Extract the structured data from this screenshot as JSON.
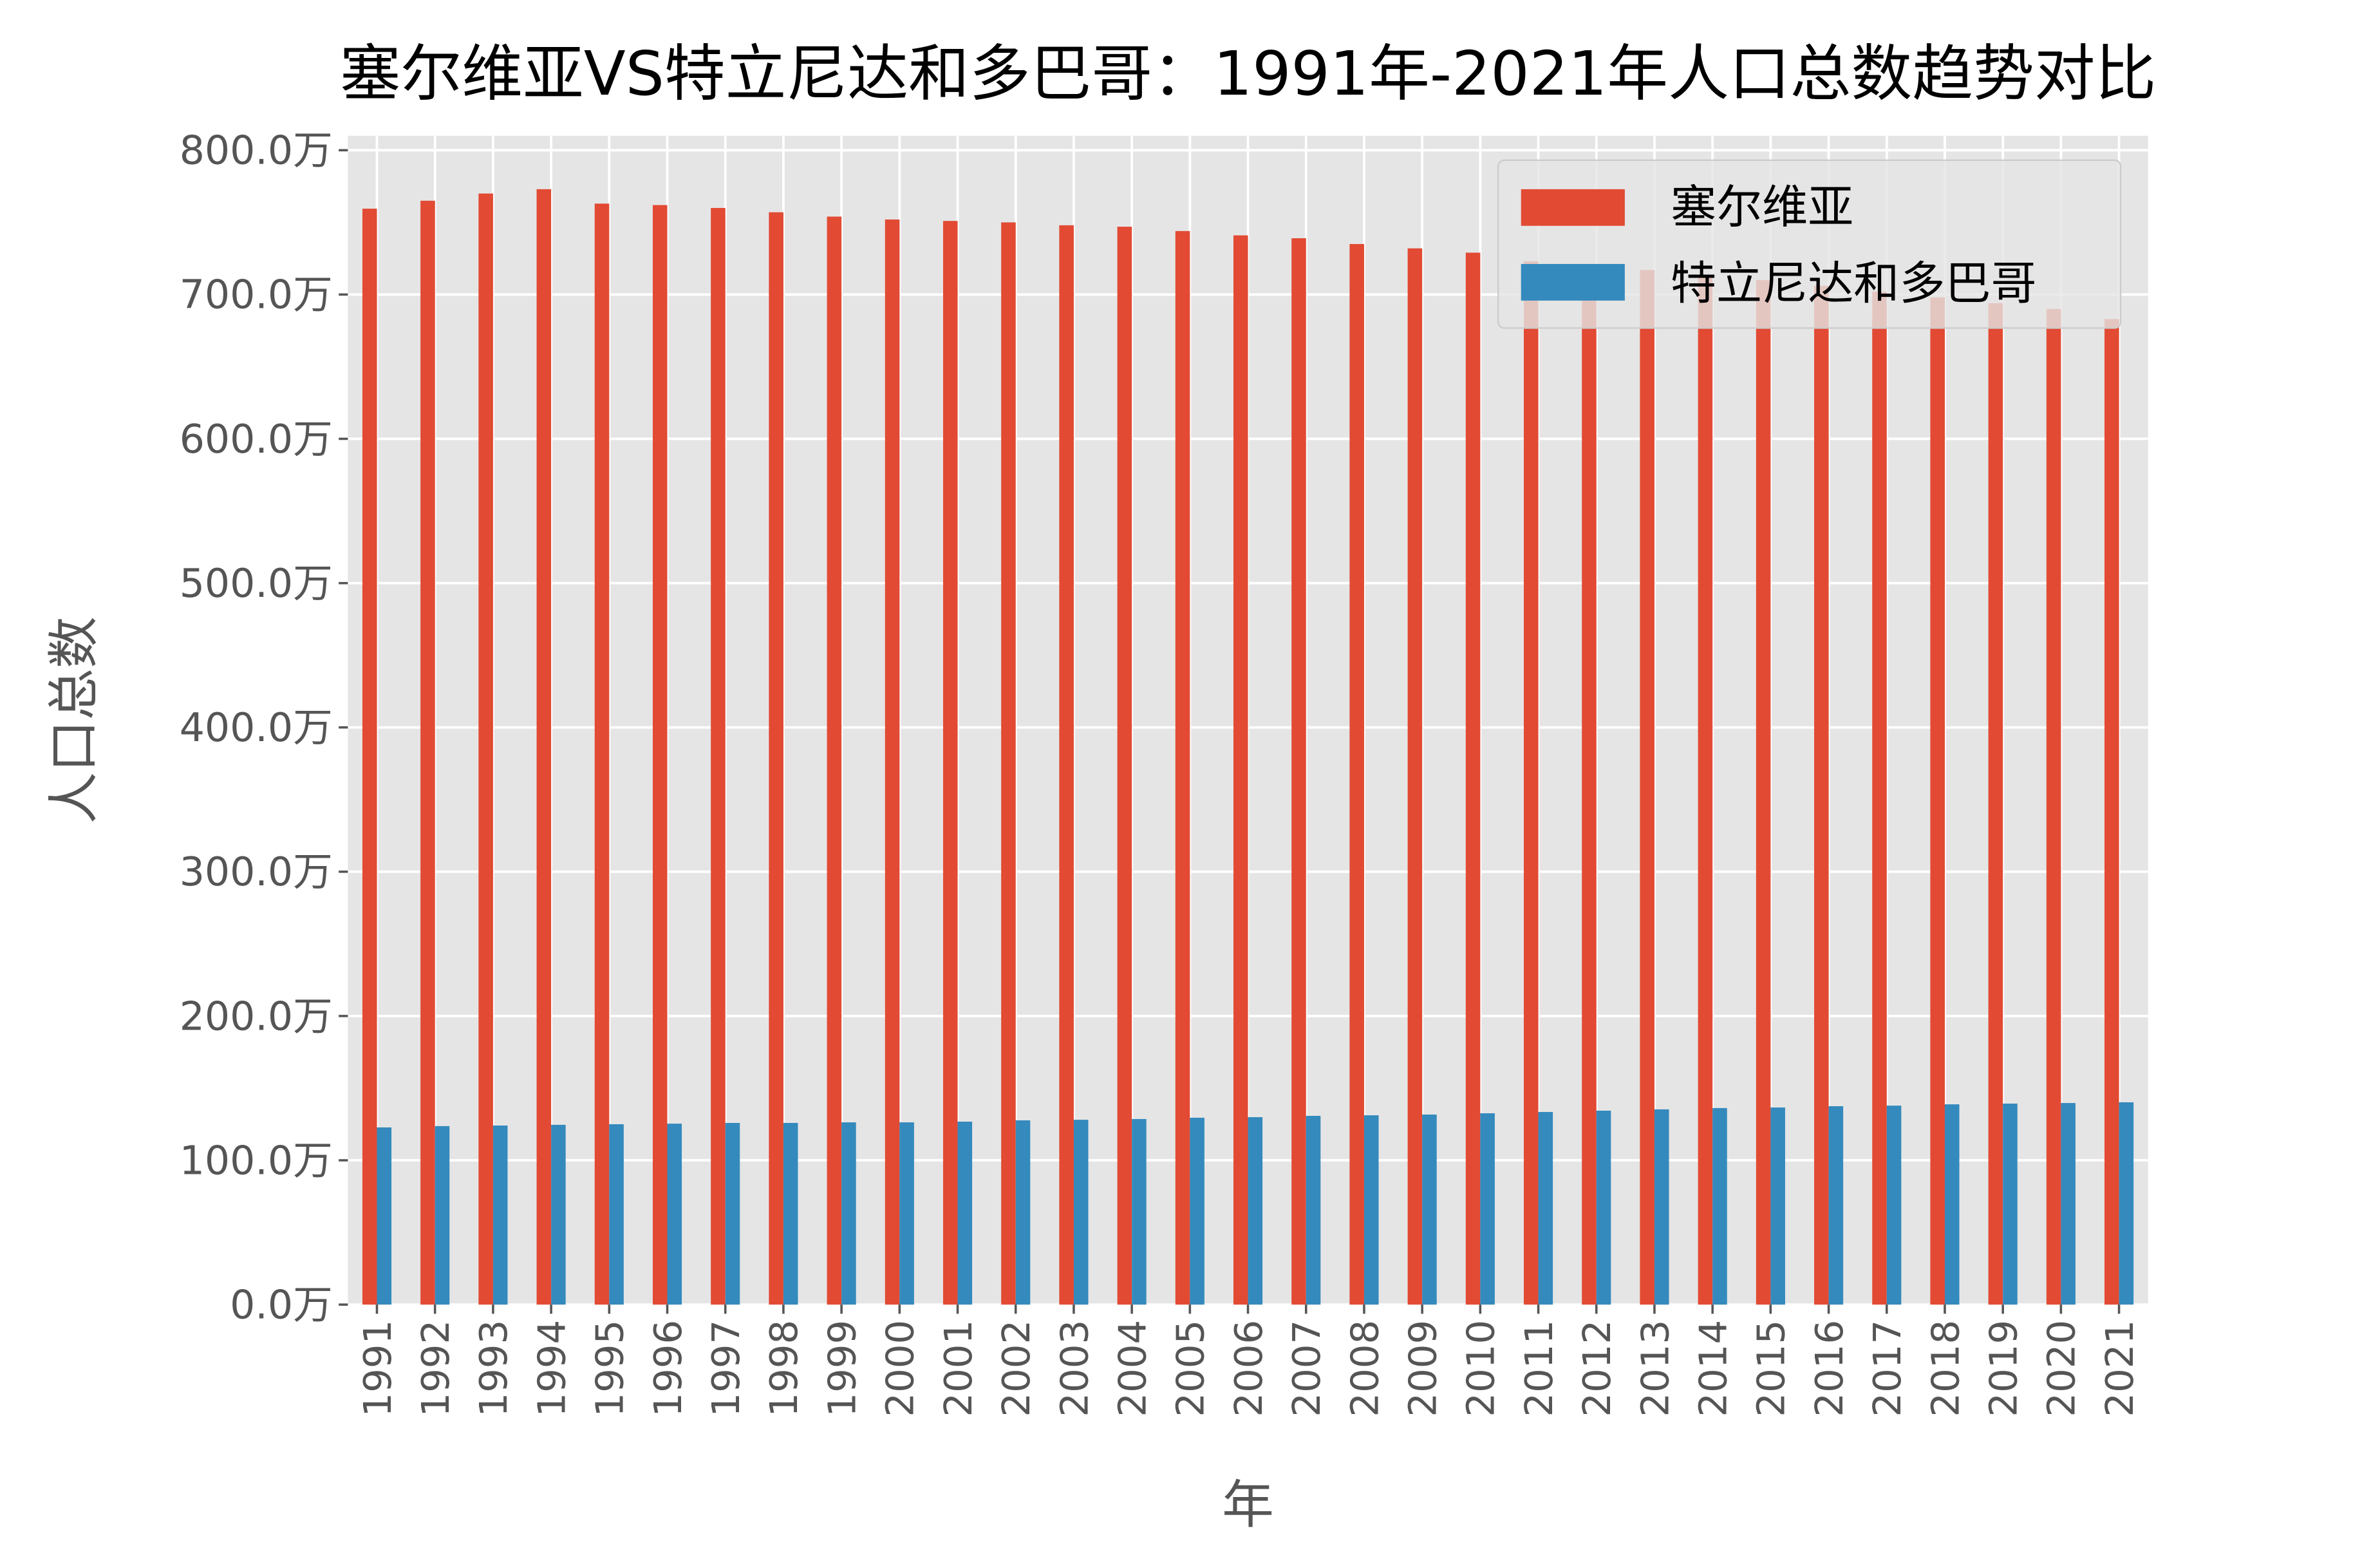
{
  "chart_data": {
    "type": "bar",
    "title": "塞尔维亚VS特立尼达和多巴哥：1991年-2021年人口总数趋势对比",
    "xlabel": "年",
    "ylabel": "人口总数",
    "unit": "万",
    "ylim": [
      0,
      810
    ],
    "yticks": [
      "0.0万",
      "100.0万",
      "200.0万",
      "300.0万",
      "400.0万",
      "500.0万",
      "600.0万",
      "700.0万",
      "800.0万"
    ],
    "grid": true,
    "legend_position": "top-right",
    "categories": [
      "1991",
      "1992",
      "1993",
      "1994",
      "1995",
      "1996",
      "1997",
      "1998",
      "1999",
      "2000",
      "2001",
      "2002",
      "2003",
      "2004",
      "2005",
      "2006",
      "2007",
      "2008",
      "2009",
      "2010",
      "2011",
      "2012",
      "2013",
      "2014",
      "2015",
      "2016",
      "2017",
      "2018",
      "2019",
      "2020",
      "2021"
    ],
    "series": [
      {
        "name": "塞尔维亚",
        "color": "#E24A33",
        "values": [
          759.5,
          765,
          770,
          773,
          763,
          762,
          760,
          757,
          754,
          752,
          751,
          750,
          748,
          747,
          744,
          741,
          739,
          735,
          732,
          729,
          723,
          720,
          717,
          713,
          710,
          706,
          702,
          698,
          694,
          690,
          683
        ]
      },
      {
        "name": "特立尼达和多巴哥",
        "color": "#348ABD",
        "values": [
          122.8,
          123.7,
          124.1,
          124.6,
          125,
          125.4,
          125.9,
          125.9,
          126.3,
          126.3,
          126.8,
          127.7,
          128.1,
          128.6,
          129.5,
          129.9,
          130.8,
          131.2,
          131.7,
          132.6,
          133.5,
          134.4,
          135.3,
          136.2,
          136.6,
          137.5,
          137.9,
          138.8,
          139.3,
          139.7,
          140.2
        ]
      }
    ]
  }
}
